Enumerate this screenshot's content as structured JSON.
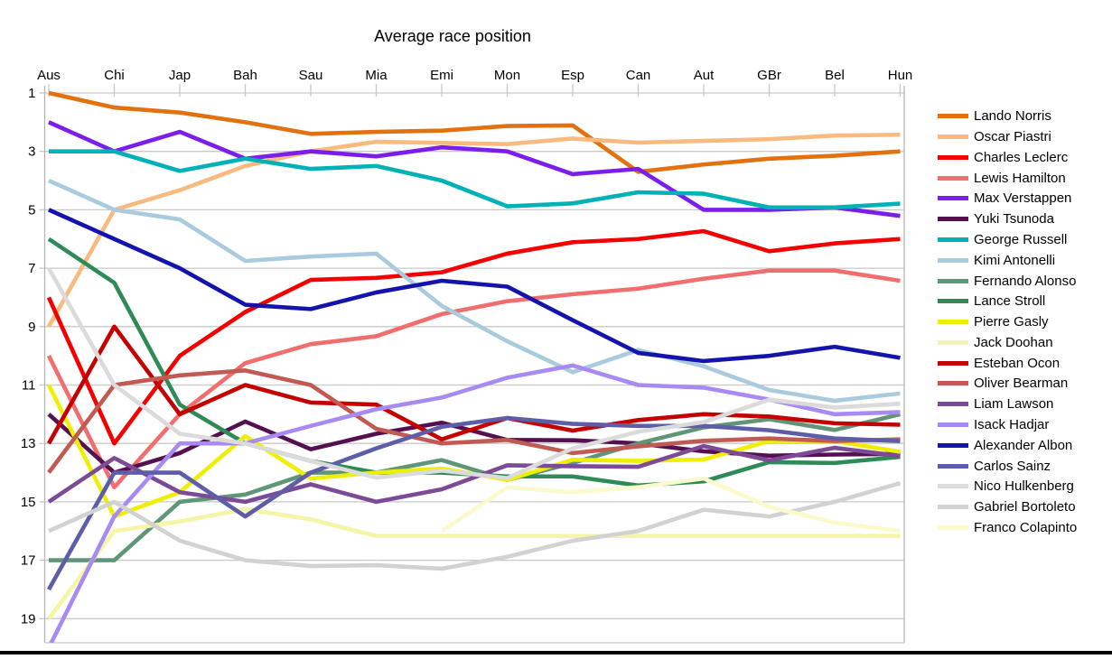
{
  "chart_data": {
    "type": "line",
    "title": "Average race position",
    "x_labels": [
      "Aus",
      "Chi",
      "Jap",
      "Bah",
      "Sau",
      "Mia",
      "Emi",
      "Mon",
      "Esp",
      "Can",
      "Aut",
      "GBr",
      "Bel",
      "Hun"
    ],
    "y_ticks": [
      1,
      3,
      5,
      7,
      9,
      11,
      13,
      15,
      17,
      19
    ],
    "y_axis": {
      "min": 1,
      "max": 19.9,
      "inverted": true,
      "grid": "horizontal-only"
    },
    "legend_position": "right",
    "series": [
      {
        "name": "Lando Norris",
        "color": "#E2710F",
        "values": [
          1.0,
          1.5,
          1.67,
          2.0,
          2.4,
          2.33,
          2.29,
          2.13,
          2.11,
          3.7,
          3.45,
          3.25,
          3.15,
          3.0
        ]
      },
      {
        "name": "Oscar Piastri",
        "color": "#F9BA7F",
        "values": [
          9.0,
          5.0,
          4.33,
          3.5,
          3.0,
          2.67,
          2.71,
          2.75,
          2.56,
          2.7,
          2.64,
          2.58,
          2.46,
          2.43
        ]
      },
      {
        "name": "Charles Leclerc",
        "color": "#F40000",
        "values": [
          8.0,
          13.0,
          10.0,
          8.5,
          7.4,
          7.33,
          7.14,
          6.5,
          6.11,
          6.0,
          5.73,
          6.42,
          6.15,
          6.0
        ]
      },
      {
        "name": "Lewis Hamilton",
        "color": "#F26D6D",
        "values": [
          10.0,
          14.5,
          12.0,
          10.25,
          9.6,
          9.33,
          8.57,
          8.13,
          7.89,
          7.7,
          7.36,
          7.08,
          7.08,
          7.43
        ]
      },
      {
        "name": "Max Verstappen",
        "color": "#7B1DEB",
        "values": [
          2.0,
          3.0,
          2.33,
          3.25,
          3.0,
          3.17,
          2.86,
          3.0,
          3.78,
          3.6,
          5.0,
          5.0,
          4.92,
          5.21
        ]
      },
      {
        "name": "Yuki Tsunoda",
        "color": "#55104F",
        "values": [
          12.0,
          14.0,
          13.33,
          12.25,
          13.2,
          12.67,
          12.29,
          12.88,
          12.89,
          13.0,
          13.27,
          13.42,
          13.38,
          13.36
        ]
      },
      {
        "name": "George Russell",
        "color": "#00B2B5",
        "values": [
          3.0,
          3.0,
          3.67,
          3.25,
          3.6,
          3.5,
          4.0,
          4.88,
          4.78,
          4.4,
          4.45,
          4.92,
          4.92,
          4.79
        ]
      },
      {
        "name": "Kimi Antonelli",
        "color": "#A9CBDD",
        "values": [
          4.0,
          5.0,
          5.33,
          6.75,
          6.6,
          6.5,
          8.29,
          9.5,
          10.56,
          9.8,
          10.36,
          11.17,
          11.54,
          11.29
        ]
      },
      {
        "name": "Fernando Alonso",
        "color": "#609678",
        "values": [
          17.0,
          17.0,
          15.0,
          14.75,
          14.0,
          14.0,
          13.57,
          14.25,
          13.67,
          13.0,
          12.45,
          12.17,
          12.54,
          12.0
        ]
      },
      {
        "name": "Lance Stroll",
        "color": "#2E8B57",
        "values": [
          6.0,
          7.5,
          11.67,
          13.0,
          13.6,
          14.0,
          14.0,
          14.13,
          14.13,
          14.44,
          14.3,
          13.64,
          13.67,
          13.46
        ]
      },
      {
        "name": "Pierre Gasly",
        "color": "#EFEF05",
        "values": [
          11.0,
          15.5,
          14.67,
          12.75,
          14.2,
          14.0,
          13.86,
          14.25,
          13.56,
          13.6,
          13.55,
          12.92,
          12.92,
          13.29
        ]
      },
      {
        "name": "Jack Doohan",
        "color": "#F5F5A6",
        "values": [
          19.0,
          16.0,
          15.67,
          15.25,
          15.6,
          16.17,
          16.17,
          16.17,
          16.17,
          16.17,
          16.17,
          16.17,
          16.17,
          16.17
        ]
      },
      {
        "name": "Esteban Ocon",
        "color": "#C40000",
        "values": [
          13.0,
          9.0,
          12.0,
          11.0,
          11.6,
          11.67,
          12.86,
          12.13,
          12.56,
          12.2,
          12.0,
          12.08,
          12.31,
          12.36
        ]
      },
      {
        "name": "Oliver Bearman",
        "color": "#C05A52",
        "values": [
          14.0,
          11.0,
          10.67,
          10.5,
          11.0,
          12.5,
          13.0,
          12.88,
          13.33,
          13.1,
          12.91,
          12.83,
          12.92,
          12.86
        ]
      },
      {
        "name": "Liam Lawson",
        "color": "#7D4A96",
        "values": [
          15.0,
          13.5,
          14.67,
          15.0,
          14.4,
          15.0,
          14.57,
          13.75,
          13.78,
          13.8,
          13.09,
          13.58,
          13.15,
          13.43
        ]
      },
      {
        "name": "Isack Hadjar",
        "color": "#A78BF2",
        "values": [
          20.0,
          15.5,
          13.0,
          13.0,
          12.4,
          11.83,
          11.43,
          10.75,
          10.33,
          11.0,
          11.09,
          11.5,
          12.0,
          11.93
        ]
      },
      {
        "name": "Alexander Albon",
        "color": "#1414AC",
        "values": [
          5.0,
          6.0,
          7.0,
          8.25,
          8.4,
          7.83,
          7.43,
          7.63,
          8.78,
          9.9,
          10.18,
          10.0,
          9.69,
          10.07
        ]
      },
      {
        "name": "Carlos Sainz",
        "color": "#5D5DA8",
        "values": [
          18.0,
          14.0,
          14.0,
          15.5,
          14.0,
          13.17,
          12.43,
          12.13,
          12.33,
          12.4,
          12.4,
          12.55,
          12.83,
          12.92
        ]
      },
      {
        "name": "Nico Hulkenberg",
        "color": "#DBDBDB",
        "values": [
          7.0,
          11.0,
          12.67,
          13.0,
          13.6,
          14.17,
          13.93,
          14.19,
          13.17,
          12.6,
          12.27,
          11.5,
          11.77,
          11.64
        ]
      },
      {
        "name": "Gabriel Bortoleto",
        "color": "#D2D2D2",
        "values": [
          16.0,
          15.0,
          16.33,
          17.0,
          17.2,
          17.17,
          17.29,
          16.88,
          16.33,
          16.0,
          15.27,
          15.5,
          15.0,
          14.36
        ]
      },
      {
        "name": "Franco Colapinto",
        "color": "#FAFACD",
        "values": [
          null,
          null,
          null,
          null,
          null,
          null,
          16.0,
          14.5,
          14.67,
          14.5,
          14.2,
          15.17,
          15.71,
          16.0
        ]
      }
    ]
  },
  "layout_colors": {
    "gridline": "#C9C9C9",
    "axis": "#B5B5B5",
    "text": "#000000",
    "background": "#FFFFFF",
    "bottom_bar": "#000000"
  }
}
